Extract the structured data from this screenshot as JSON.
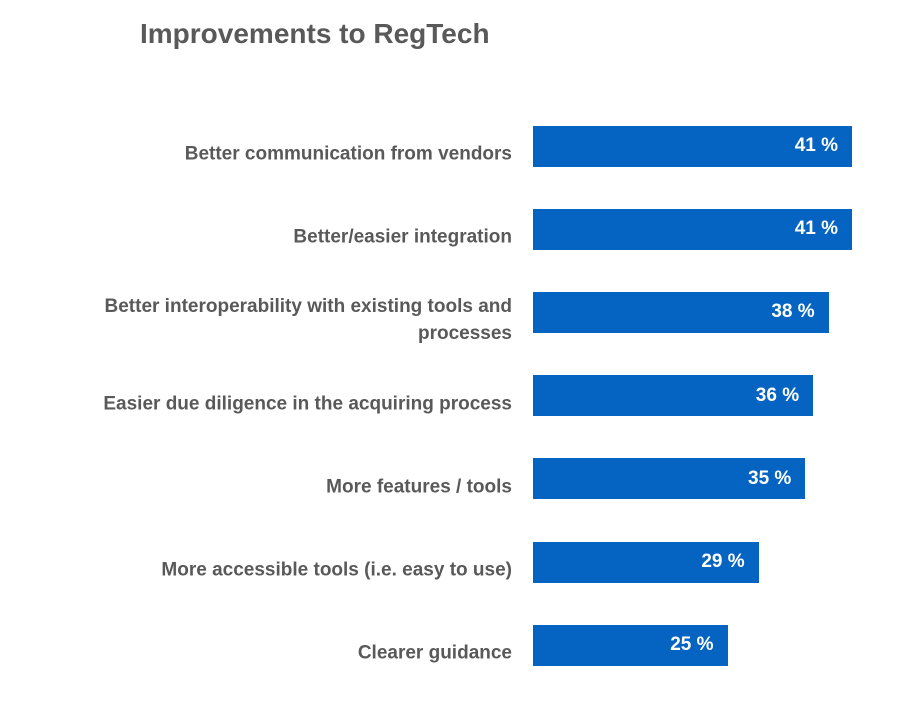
{
  "chart_data": {
    "type": "bar",
    "orientation": "horizontal",
    "title": "Improvements to RegTech",
    "categories": [
      "Better communication from vendors",
      "Better/easier integration",
      "Better interoperability with existing tools and processes",
      "Easier due diligence in the acquiring process",
      "More features / tools",
      "More accessible tools (i.e. easy to use)",
      "Clearer guidance"
    ],
    "values": [
      41,
      41,
      38,
      36,
      35,
      29,
      25
    ],
    "value_labels": [
      "41 %",
      "41 %",
      "38 %",
      "36 %",
      "35 %",
      "29 %",
      "25 %"
    ],
    "color": "#0563c1"
  }
}
